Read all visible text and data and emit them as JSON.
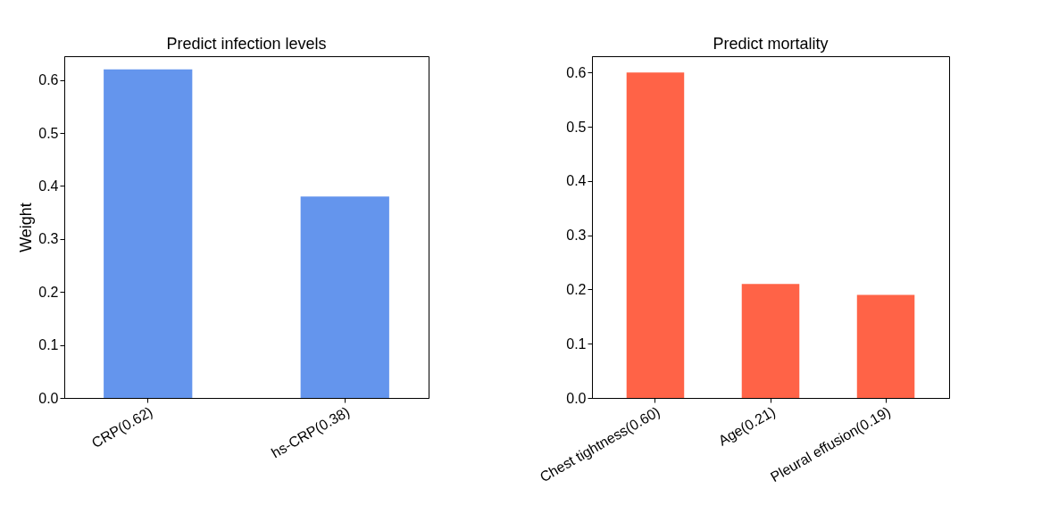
{
  "chart_data": [
    {
      "type": "bar",
      "title": "Predict infection levels",
      "ylabel": "Weight",
      "categories": [
        "CRP(0.62)",
        "hs-CRP(0.38)"
      ],
      "values": [
        0.62,
        0.38
      ],
      "color": "#6495ed",
      "ylim": [
        0,
        0.645
      ],
      "yticks": [
        {
          "value": 0,
          "label": "0.0"
        },
        0.1,
        0.2,
        0.3,
        0.4,
        0.5,
        0.6
      ],
      "grid": false
    },
    {
      "type": "bar",
      "title": "Predict mortality",
      "categories": [
        "Chest tightness(0.60)",
        "Age(0.21)",
        "Pleural effusion(0.19)"
      ],
      "values": [
        0.6,
        0.21,
        0.19
      ],
      "color": "#ff6347",
      "ylim": [
        0,
        0.63
      ],
      "yticks": [
        {
          "value": 0,
          "label": "0.0"
        },
        0.1,
        0.2,
        0.3,
        0.4,
        0.5,
        0.6
      ],
      "grid": false
    }
  ]
}
